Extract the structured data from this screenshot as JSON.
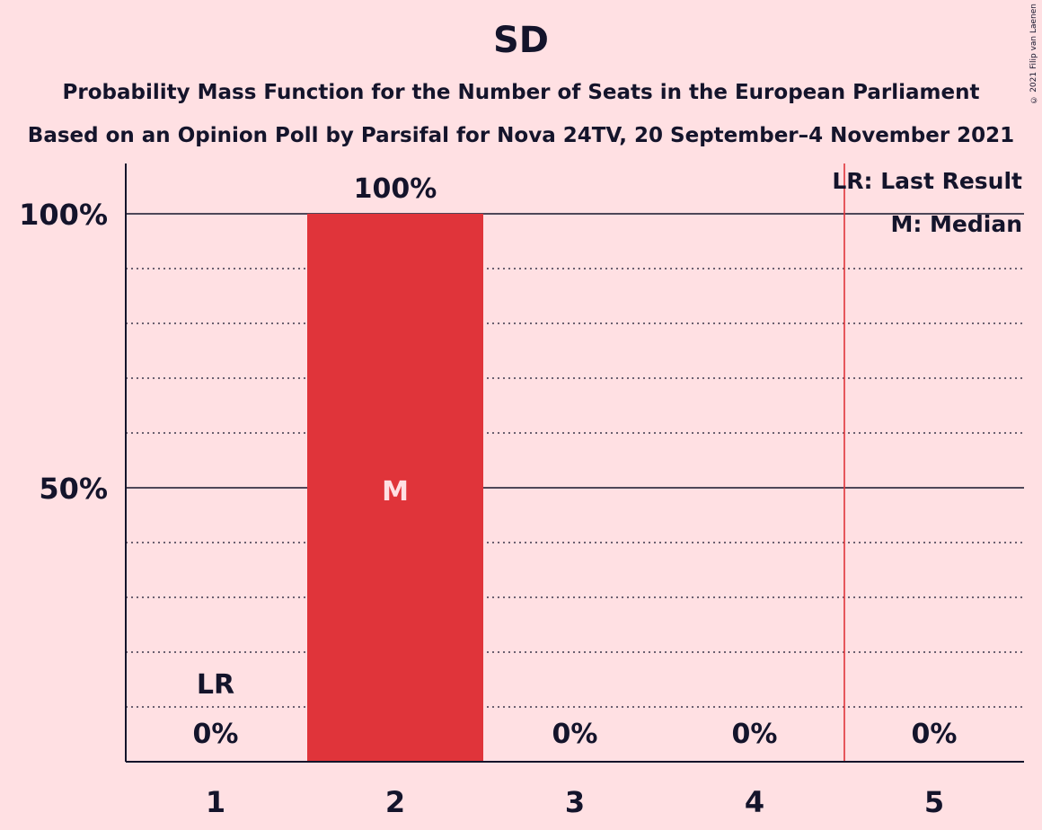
{
  "title": "SD",
  "subtitle1": "Probability Mass Function for the Number of Seats in the European Parliament",
  "subtitle2": "Based on an Opinion Poll by Parsifal for Nova 24TV, 20 September–4 November 2021",
  "copyright": "© 2021 Filip van Laenen",
  "legend": {
    "last_result": "LR: Last Result",
    "median": "M: Median"
  },
  "colors": {
    "background": "#ffe0e3",
    "bar": "#e0343a",
    "text": "#14142b",
    "last_result_line": "#e0343a"
  },
  "chart_data": {
    "type": "bar",
    "categories": [
      "1",
      "2",
      "3",
      "4",
      "5"
    ],
    "values": [
      0,
      100,
      0,
      0,
      0
    ],
    "value_labels": [
      "0%",
      "100%",
      "0%",
      "0%",
      "0%"
    ],
    "ylim": [
      0,
      100
    ],
    "y_ticks": [
      {
        "value": 50,
        "label": "50%"
      },
      {
        "value": 100,
        "label": "100%"
      }
    ],
    "minor_gridlines": [
      10,
      20,
      30,
      40,
      60,
      70,
      80,
      90
    ],
    "last_result": {
      "category": "1",
      "label": "LR"
    },
    "median": {
      "category": "2",
      "label": "M"
    },
    "last_result_line_after_category": "4"
  }
}
